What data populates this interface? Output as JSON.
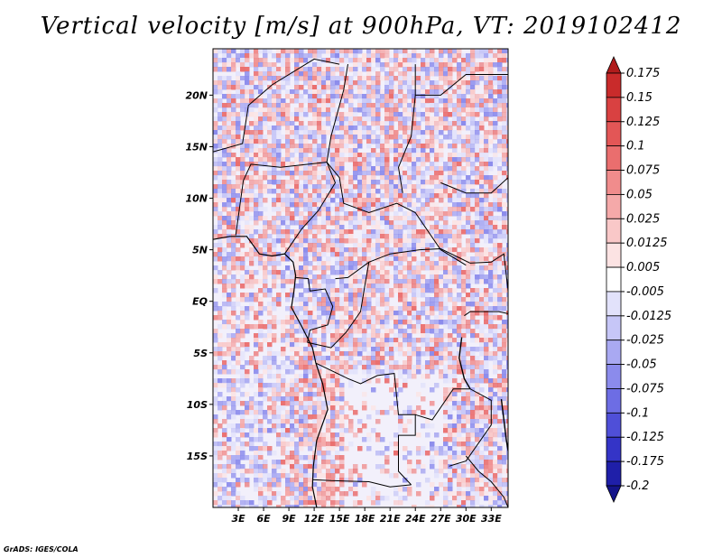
{
  "title": "Vertical velocity [m/s] at 900hPa, VT: 2019102412",
  "credit": "GrADS: IGES/COLA",
  "map": {
    "lat_labels": [
      "20N",
      "15N",
      "10N",
      "5N",
      "EQ",
      "5S",
      "10S",
      "15S"
    ],
    "lat_values": [
      20,
      15,
      10,
      5,
      0,
      -5,
      -10,
      -15
    ],
    "lon_labels": [
      "3E",
      "6E",
      "9E",
      "12E",
      "15E",
      "18E",
      "21E",
      "24E",
      "27E",
      "30E",
      "33E"
    ],
    "lon_values": [
      3,
      6,
      9,
      12,
      15,
      18,
      21,
      24,
      27,
      30,
      33
    ],
    "lon_range": [
      0,
      35
    ],
    "lat_range": [
      -20,
      24.5
    ]
  },
  "colorbar": {
    "labels": [
      "0.175",
      "0.15",
      "0.125",
      "0.1",
      "0.075",
      "0.05",
      "0.025",
      "0.0125",
      "0.005",
      "-0.005",
      "-0.0125",
      "-0.025",
      "-0.05",
      "-0.075",
      "-0.1",
      "-0.125",
      "-0.175",
      "-0.2"
    ],
    "colors": [
      "#b01c1c",
      "#c92b2b",
      "#d94141",
      "#e35656",
      "#ea6e6e",
      "#f08c8c",
      "#f5a9a9",
      "#f9c8c8",
      "#fce3e3",
      "#ffffff",
      "#e2e2fb",
      "#c6c6f7",
      "#a9a9f2",
      "#8b8bec",
      "#6d6de4",
      "#4f4fd8",
      "#3434c7",
      "#1f1fa9",
      "#14148a"
    ]
  }
}
